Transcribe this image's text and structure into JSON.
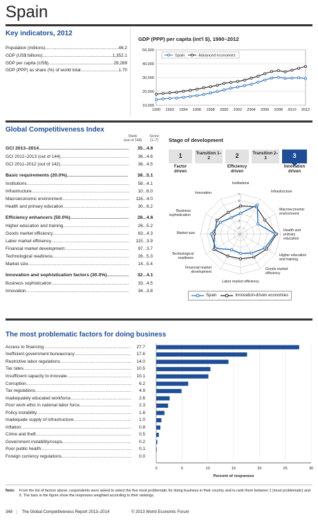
{
  "country": "Spain",
  "key_indicators": {
    "title": "Key indicators, 2012",
    "rows": [
      {
        "label": "Population (millions)",
        "value": "46.2"
      },
      {
        "label": "GDP (US$ billions)",
        "value": "1,352.1"
      },
      {
        "label": "GDP per capita (US$)",
        "value": "29,289"
      },
      {
        "label": "GDP (PPP) as share (%) of world total",
        "value": "1.70"
      }
    ]
  },
  "gdp_chart": {
    "title": "GDP (PPP) per capita (int'l $), 1990–2012",
    "legend": [
      "Spain",
      "Advanced economies"
    ]
  },
  "gci": {
    "title": "Global Competitiveness Index",
    "rank_header": "Rank",
    "rank_sub": "(out of 148)",
    "score_header": "Score",
    "score_sub": "(1–7)",
    "rows": [
      {
        "label": "GCI 2013–2014",
        "rank": "35",
        "score": "4.6",
        "bold": true
      },
      {
        "label": "GCI 2012–2013 (out of 144)",
        "rank": "36",
        "score": "4.6"
      },
      {
        "label": "GCI 2011–2012 (out of 142)",
        "rank": "36",
        "score": "4.5"
      },
      {
        "label": "Basic requirements (20.0%)",
        "rank": "38",
        "score": "5.1",
        "bold": true
      },
      {
        "label": "Institutions",
        "rank": "58",
        "score": "4.1"
      },
      {
        "label": "Infrastructure",
        "rank": "10",
        "score": "6.0"
      },
      {
        "label": "Macroeconomic environment",
        "rank": "116",
        "score": "4.0"
      },
      {
        "label": "Health and primary education",
        "rank": "30",
        "score": "6.2"
      },
      {
        "label": "Efficiency enhancers (50.0%)",
        "rank": "28",
        "score": "4.6",
        "bold": true
      },
      {
        "label": "Higher education and training",
        "rank": "26",
        "score": "5.2"
      },
      {
        "label": "Goods market efficiency",
        "rank": "63",
        "score": "4.3"
      },
      {
        "label": "Labor market efficiency",
        "rank": "115",
        "score": "3.9"
      },
      {
        "label": "Financial market development",
        "rank": "97",
        "score": "3.7"
      },
      {
        "label": "Technological readiness",
        "rank": "26",
        "score": "5.3"
      },
      {
        "label": "Market size",
        "rank": "14",
        "score": "5.4"
      },
      {
        "label": "Innovation and sophistication factors (30.0%)",
        "rank": "32",
        "score": "4.1",
        "bold": true
      },
      {
        "label": "Business sophistication",
        "rank": "33",
        "score": "4.5"
      },
      {
        "label": "Innovation",
        "rank": "34",
        "score": "3.8"
      }
    ]
  },
  "stage": {
    "title": "Stage of development",
    "boxes": [
      {
        "text": "1",
        "label": "Factor driven",
        "active": false
      },
      {
        "text": "Transition 1–2",
        "label": "",
        "active": false
      },
      {
        "text": "2",
        "label": "Efficiency driven",
        "active": false
      },
      {
        "text": "Transition 2–3",
        "label": "",
        "active": false
      },
      {
        "text": "3",
        "label": "Innovation driven",
        "active": true
      }
    ],
    "radar_legend": [
      "Spain",
      "Innovation-driven economies"
    ]
  },
  "factors": {
    "title": "The most problematic factors for doing business",
    "xlabel": "Percent of responses",
    "note_label": "Note:",
    "note": "From the list of factors above, respondents were asked to select the five most problematic for doing business in their country and to rank them between 1 (most problematic) and 5. The bars in the figure show the responses weighted according to their rankings."
  },
  "footer": {
    "page": "348",
    "report": "The Global Competitiveness Report 2013–2014",
    "copyright": "© 2013 World Economic Forum"
  },
  "colors": {
    "accent": "#1f4e96",
    "spain": "#2a6ebb",
    "dark": "#222222"
  },
  "chart_data": [
    {
      "type": "line",
      "title": "GDP (PPP) per capita (int'l $), 1990–2012",
      "x": [
        1990,
        1991,
        1992,
        1993,
        1994,
        1995,
        1996,
        1997,
        1998,
        1999,
        2000,
        2001,
        2002,
        2003,
        2004,
        2005,
        2006,
        2007,
        2008,
        2009,
        2010,
        2011,
        2012
      ],
      "x_ticks": [
        1990,
        1992,
        1994,
        1996,
        1998,
        2000,
        2002,
        2004,
        2006,
        2008,
        2010,
        2012
      ],
      "ylim": [
        10000,
        50000
      ],
      "y_ticks": [
        "10,000",
        "20,000",
        "30,000",
        "40,000",
        "50,000"
      ],
      "series": [
        {
          "name": "Spain",
          "values": [
            14000,
            14600,
            15000,
            15200,
            15700,
            16400,
            17000,
            17800,
            18800,
            19900,
            21100,
            22300,
            23200,
            24100,
            25200,
            26600,
            28200,
            29600,
            30200,
            29400,
            29600,
            29800,
            29300
          ]
        },
        {
          "name": "Advanced economies",
          "values": [
            18000,
            18500,
            19000,
            19400,
            20100,
            20800,
            21600,
            22600,
            23400,
            24400,
            25800,
            26500,
            27200,
            28100,
            29600,
            31000,
            32800,
            34300,
            35000,
            34100,
            35300,
            36700,
            38000
          ]
        }
      ]
    },
    {
      "type": "radar",
      "axes": [
        "Institutions",
        "Infrastructure",
        "Macroeconomic environment",
        "Health and primary education",
        "Higher education and training",
        "Goods market efficiency",
        "Labor market efficiency",
        "Financial market development",
        "Technological readiness",
        "Market size",
        "Business sophistication",
        "Innovation"
      ],
      "range": [
        1,
        7
      ],
      "ticks": [
        1,
        2,
        3,
        4,
        5,
        6,
        7
      ],
      "series": [
        {
          "name": "Spain",
          "values": [
            4.1,
            6.0,
            4.0,
            6.2,
            5.2,
            4.3,
            3.9,
            3.7,
            5.3,
            5.4,
            4.5,
            3.8
          ]
        },
        {
          "name": "Innovation-driven economies",
          "values": [
            5.2,
            5.7,
            5.2,
            6.4,
            5.5,
            5.0,
            4.7,
            4.8,
            5.6,
            4.9,
            5.1,
            4.7
          ]
        }
      ]
    },
    {
      "type": "bar",
      "orientation": "horizontal",
      "categories": [
        "Access to financing",
        "Inefficient government bureaucracy",
        "Restrictive labor regulations",
        "Tax rates",
        "Insufficient capacity to innovate",
        "Corruption",
        "Tax regulations",
        "Inadequately educated workforce",
        "Poor work ethic in national labor force",
        "Policy instability",
        "Inadequate supply of infrastructure",
        "Inflation",
        "Crime and theft",
        "Government instability/coups",
        "Poor public health",
        "Foreign currency regulations"
      ],
      "values": [
        27.7,
        17.6,
        14.0,
        10.5,
        10.1,
        6.2,
        4.9,
        2.6,
        2.3,
        1.6,
        1.0,
        0.8,
        0.5,
        0.2,
        0.1,
        0.0
      ],
      "value_labels": [
        "27.7",
        "17.6",
        "14.0",
        "10.5",
        "10.1",
        "6.2",
        "4.9",
        "2.6",
        "2.3",
        "1.6",
        "1.0",
        "0.8",
        "0.5",
        "0.2",
        "0.1",
        "0.0"
      ],
      "xlim": [
        0,
        30
      ],
      "x_ticks": [
        0,
        5,
        10,
        15,
        20,
        25,
        30
      ],
      "xlabel": "Percent of responses"
    }
  ]
}
